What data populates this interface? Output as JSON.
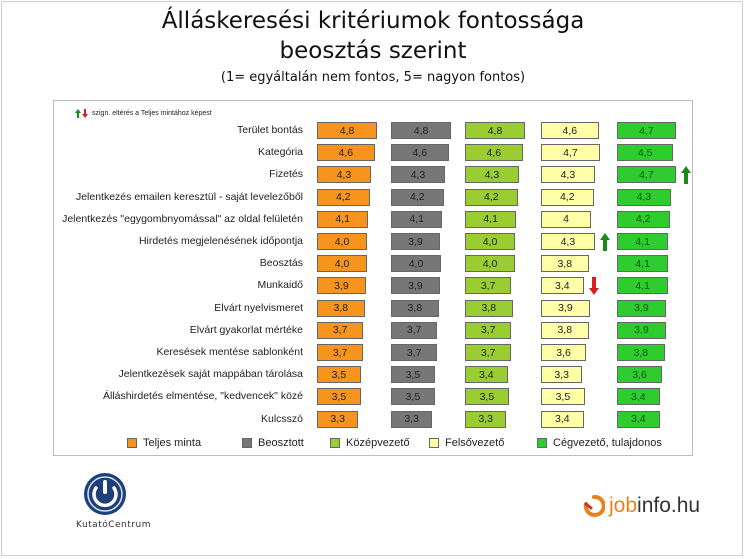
{
  "header": {
    "title_line1": "Álláskeresési kritériumok fontossága",
    "title_line2": "beosztás szerint",
    "subtitle": "(1= egyáltalán nem fontos, 5= nagyon fontos)"
  },
  "note": "szign. eltérés a Teljes mintához képest",
  "colors": {
    "teljes": "#f7941d",
    "beosztott": "#777777",
    "kozep": "#9acd32",
    "felso": "#ffffa8",
    "ceg": "#2ecc2e",
    "arrow_up": "#1a8a1a",
    "arrow_down": "#d42020"
  },
  "chart_data": {
    "type": "bar",
    "orientation": "horizontal",
    "categories": [
      "Terület bontás",
      "Kategória",
      "Fizetés",
      "Jelentkezés emailen keresztül - saját levelezőből",
      "Jelentkezés \"egygombnyomással\" az oldal felületén",
      "Hirdetés megjelenésének időpontja",
      "Beosztás",
      "Munkaidő",
      "Elvárt nyelvismeret",
      "Elvárt gyakorlat mértéke",
      "Keresések mentése sablonként",
      "Jelentkezések saját mappában tárolása",
      "Álláshirdetés elmentése, \"kedvencek\" közé",
      "Kulcsszó"
    ],
    "series": [
      {
        "name": "Teljes minta",
        "values": [
          4.8,
          4.6,
          4.3,
          4.2,
          4.1,
          4.0,
          4.0,
          3.9,
          3.8,
          3.7,
          3.7,
          3.5,
          3.5,
          3.3
        ],
        "labels": [
          "4,8",
          "4,6",
          "4,3",
          "4,2",
          "4,1",
          "4,0",
          "4,0",
          "3,9",
          "3,8",
          "3,7",
          "3,7",
          "3,5",
          "3,5",
          "3,3"
        ]
      },
      {
        "name": "Beosztott",
        "values": [
          4.8,
          4.6,
          4.3,
          4.2,
          4.1,
          3.9,
          4.0,
          3.9,
          3.8,
          3.7,
          3.7,
          3.5,
          3.5,
          3.3
        ],
        "labels": [
          "4,8",
          "4,6",
          "4,3",
          "4,2",
          "4,1",
          "3,9",
          "4,0",
          "3,9",
          "3,8",
          "3,7",
          "3,7",
          "3,5",
          "3,5",
          "3,3"
        ]
      },
      {
        "name": "Középvezető",
        "values": [
          4.8,
          4.6,
          4.3,
          4.2,
          4.1,
          4.0,
          4.0,
          3.7,
          3.8,
          3.7,
          3.7,
          3.4,
          3.5,
          3.3
        ],
        "labels": [
          "4,8",
          "4,6",
          "4,3",
          "4,2",
          "4,1",
          "4,0",
          "4,0",
          "3,7",
          "3,8",
          "3,7",
          "3,7",
          "3,4",
          "3,5",
          "3,3"
        ]
      },
      {
        "name": "Felsővezető",
        "values": [
          4.6,
          4.7,
          4.3,
          4.2,
          4.0,
          4.3,
          3.8,
          3.4,
          3.9,
          3.8,
          3.6,
          3.3,
          3.5,
          3.4
        ],
        "labels": [
          "4,6",
          "4,7",
          "4,3",
          "4,2",
          "4",
          "4,3",
          "3,8",
          "3,4",
          "3,9",
          "3,8",
          "3,6",
          "3,3",
          "3,5",
          "3,4"
        ]
      },
      {
        "name": "Cégvezető, tulajdonos",
        "values": [
          4.7,
          4.5,
          4.7,
          4.3,
          4.2,
          4.1,
          4.1,
          4.1,
          3.9,
          3.9,
          3.8,
          3.6,
          3.4,
          3.4
        ],
        "labels": [
          "4,7",
          "4,5",
          "4,7",
          "4,3",
          "4,2",
          "4,1",
          "4,1",
          "4,1",
          "3,9",
          "3,9",
          "3,8",
          "3,6",
          "3,4",
          "3,4"
        ]
      }
    ],
    "significance": [
      {
        "series": 4,
        "row": 2,
        "direction": "up"
      },
      {
        "series": 3,
        "row": 5,
        "direction": "up"
      },
      {
        "series": 3,
        "row": 7,
        "direction": "down"
      }
    ],
    "legend_position": "bottom"
  },
  "logos": {
    "left_text": "KutatóCentrum",
    "right_text_job": "job",
    "right_text_rest": "info.hu"
  }
}
